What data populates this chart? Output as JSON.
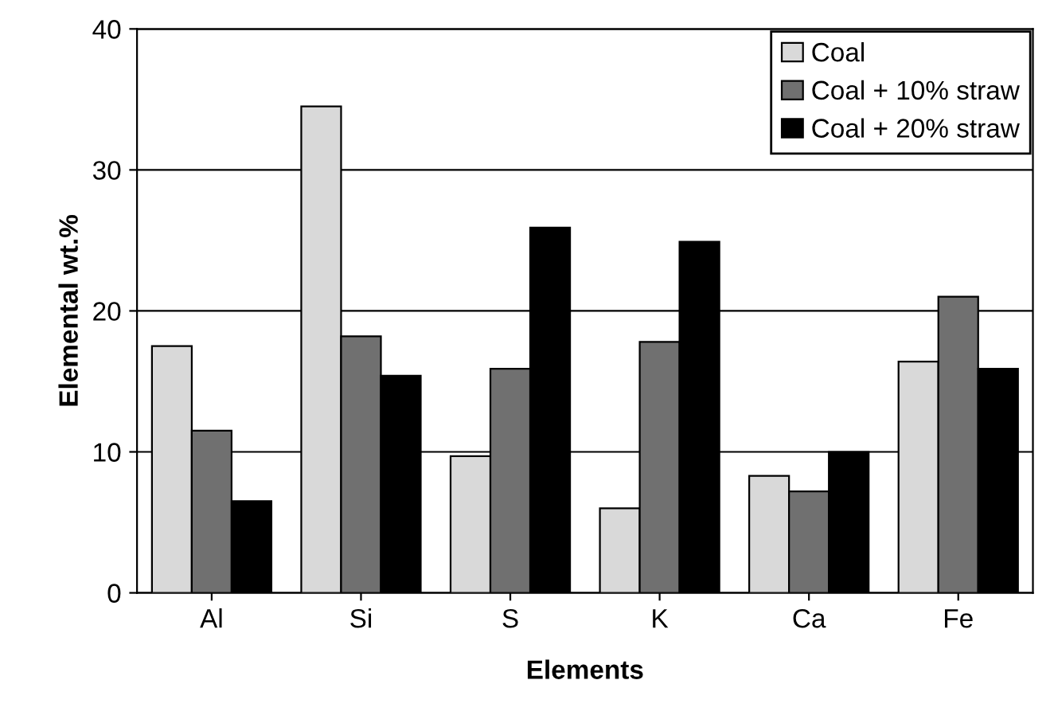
{
  "chart_data": {
    "type": "bar",
    "xlabel": "Elements",
    "ylabel": "Elemental wt.%",
    "categories": [
      "Al",
      "Si",
      "S",
      "K",
      "Ca",
      "Fe"
    ],
    "series": [
      {
        "name": "Coal",
        "color": "#d9d9d9",
        "values": [
          17.5,
          34.5,
          9.7,
          6.0,
          8.3,
          16.4
        ]
      },
      {
        "name": "Coal + 10% straw",
        "color": "#707070",
        "values": [
          11.5,
          18.2,
          15.9,
          17.8,
          7.2,
          21.0
        ]
      },
      {
        "name": "Coal + 20% straw",
        "color": "#000000",
        "values": [
          6.5,
          15.4,
          25.9,
          24.9,
          10.0,
          15.9
        ]
      }
    ],
    "ylim": [
      0,
      40
    ],
    "yticks": [
      0,
      10,
      20,
      30,
      40
    ],
    "grid": "y",
    "legend": "top right"
  }
}
